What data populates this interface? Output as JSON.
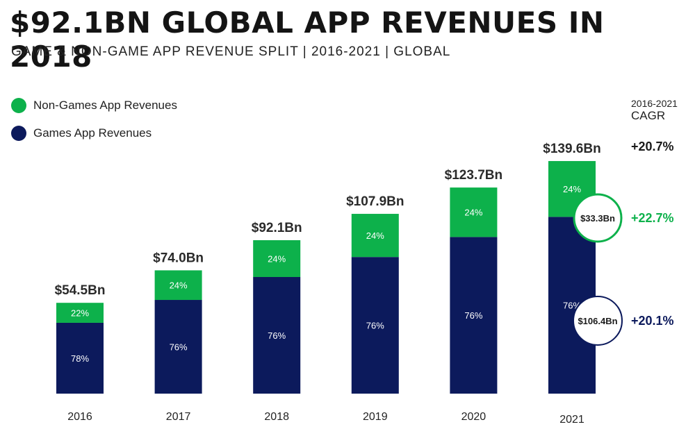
{
  "title": "$92.1BN GLOBAL APP REVENUES IN 2018",
  "subtitle": "GAME & NON-GAME APP REVENUE SPLIT | 2016-2021 | GLOBAL",
  "legend": [
    {
      "label": "Non-Games App Revenues",
      "color": "#0db14b"
    },
    {
      "label": "Games App Revenues",
      "color": "#0c1a5c"
    }
  ],
  "cagr": {
    "heading_line1": "2016-2021",
    "heading_line2": "CAGR",
    "total": "+20.7%",
    "non_games": "+22.7%",
    "games": "+20.1%",
    "total_color": "#1a1a1a",
    "non_games_color": "#0db14b",
    "games_color": "#0c1a5c"
  },
  "chart_data": {
    "type": "bar",
    "stacked": true,
    "categories": [
      "2016",
      "2017",
      "2018",
      "2019",
      "2020",
      "2021"
    ],
    "totals": [
      54.5,
      74.0,
      92.1,
      107.9,
      123.7,
      139.6
    ],
    "total_labels": [
      "$54.5Bn",
      "$74.0Bn",
      "$92.1Bn",
      "$107.9Bn",
      "$123.7Bn",
      "$139.6Bn"
    ],
    "series": [
      {
        "name": "Games App Revenues",
        "color": "#0c1a5c",
        "share": [
          78,
          76,
          76,
          76,
          76,
          76
        ],
        "share_labels": [
          "78%",
          "76%",
          "76%",
          "76%",
          "76%",
          "76%"
        ]
      },
      {
        "name": "Non-Games App Revenues",
        "color": "#0db14b",
        "share": [
          22,
          24,
          24,
          24,
          24,
          24
        ],
        "share_labels": [
          "22%",
          "24%",
          "24%",
          "24%",
          "24%",
          "24%"
        ]
      }
    ],
    "callouts": {
      "non_games_2021": "$33.3Bn",
      "games_2021": "$106.4Bn"
    },
    "ylim": [
      0,
      150
    ]
  }
}
